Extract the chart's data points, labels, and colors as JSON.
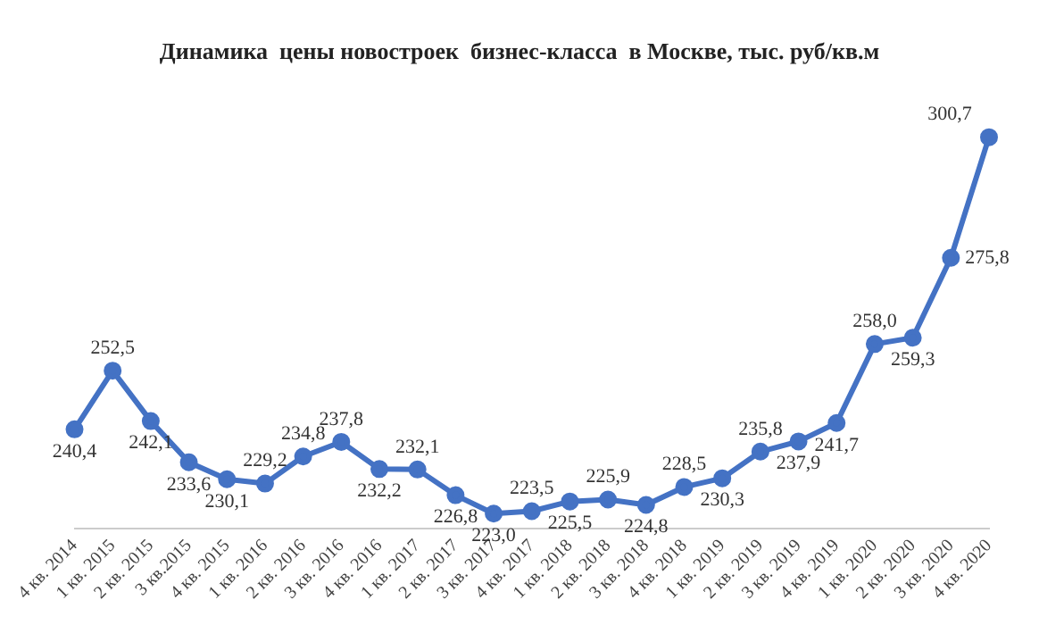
{
  "chart_data": {
    "type": "line",
    "title": "Динамика  цены новостроек  бизнес-класса  в Москве, тыс. руб/кв.м",
    "categories": [
      "4 кв. 2014",
      "1 кв. 2015",
      "2 кв. 2015",
      "3 кв.2015",
      "4 кв. 2015",
      "1 кв. 2016",
      "2 кв. 2016",
      "3 кв. 2016",
      "4 кв. 2016",
      "1 кв. 2017",
      "2 кв. 2017",
      "3 кв. 2017",
      "4 кв. 2017",
      "1 кв. 2018",
      "2 кв. 2018",
      "3 кв. 2018",
      "4 кв. 2018",
      "1 кв. 2019",
      "2 кв. 2019",
      "3 кв. 2019",
      "4 кв. 2019",
      "1 кв. 2020",
      "2 кв. 2020",
      "3 кв. 2020",
      "4 кв. 2020"
    ],
    "series": [
      {
        "color": "#4472c4",
        "values": [
          240.4,
          252.5,
          242.1,
          233.6,
          230.1,
          229.2,
          234.8,
          237.8,
          232.2,
          232.1,
          226.8,
          223.0,
          223.5,
          225.5,
          225.9,
          224.8,
          228.5,
          230.3,
          235.8,
          237.9,
          241.7,
          258.0,
          259.3,
          275.8,
          300.7
        ],
        "value_labels": [
          "240,4",
          "252,5",
          "242,1",
          "233,6",
          "230,1",
          "229,2",
          "234,8",
          "237,8",
          "232,2",
          "232,1",
          "226,8",
          "223,0",
          "223,5",
          "225,5",
          "225,9",
          "224,8",
          "228,5",
          "230,3",
          "235,8",
          "237,9",
          "241,7",
          "258,0",
          "259,3",
          "275,8",
          "300,7"
        ]
      }
    ],
    "marker": "circle",
    "line_style": "solid",
    "grid": false,
    "legend": false,
    "tick_labels": "x"
  }
}
